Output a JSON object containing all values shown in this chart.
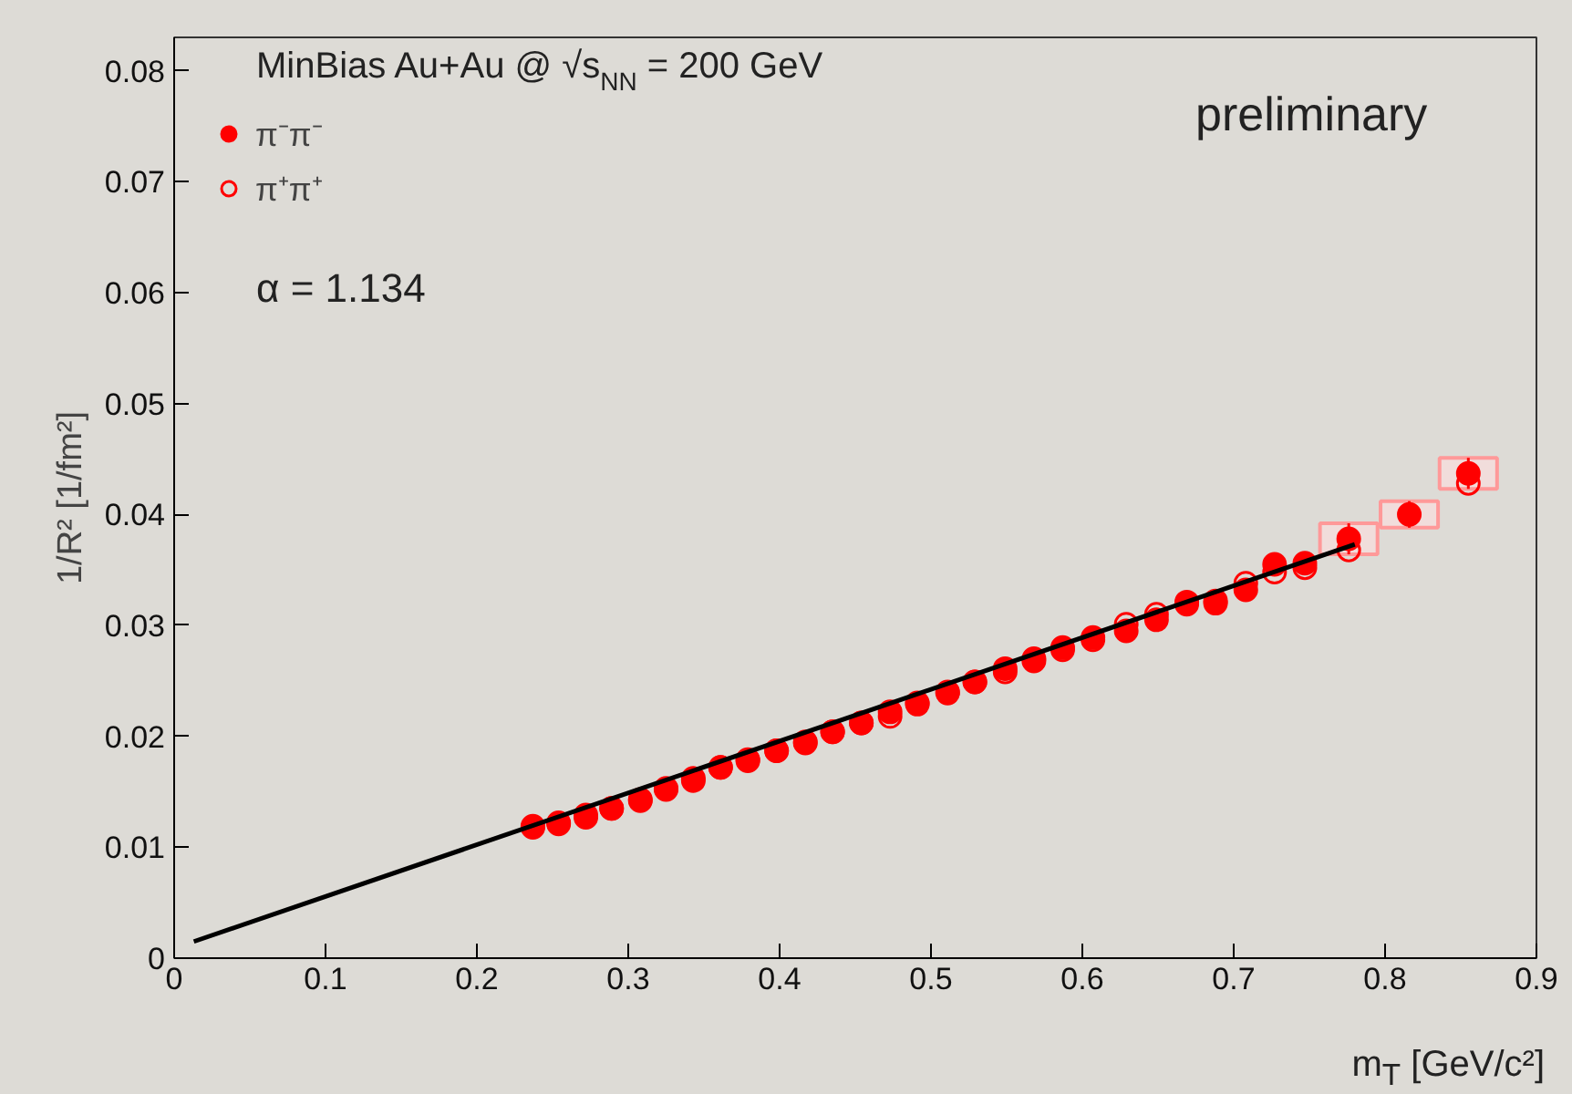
{
  "chart_data": {
    "type": "scatter",
    "xlabel": "m$_{T}$ [GeV/c²]",
    "ylabel": "1/R² [1/fm²]",
    "xlim": [
      0,
      0.9
    ],
    "ylim": [
      0,
      0.083
    ],
    "xticks": [
      0,
      0.1,
      0.2,
      0.3,
      0.4,
      0.5,
      0.6,
      0.7,
      0.8,
      0.9
    ],
    "yticks": [
      0,
      0.01,
      0.02,
      0.03,
      0.04,
      0.05,
      0.06,
      0.07,
      0.08
    ],
    "grid": false,
    "legend": "top left",
    "annotations": [
      "MinBias Au+Au @ √s$_{NN}$ = 200 GeV",
      "α = 1.134",
      "preliminary"
    ],
    "x": [
      0.237,
      0.254,
      0.272,
      0.289,
      0.308,
      0.325,
      0.343,
      0.361,
      0.379,
      0.398,
      0.417,
      0.435,
      0.454,
      0.473,
      0.491,
      0.511,
      0.529,
      0.549,
      0.568,
      0.587,
      0.607,
      0.629,
      0.649,
      0.669,
      0.688,
      0.708,
      0.727,
      0.747,
      0.776,
      0.816,
      0.855
    ],
    "series": [
      {
        "name": "π⁻π⁻",
        "color": "#ff0000",
        "marker": "circle",
        "values": [
          0.0119,
          0.0121,
          0.0129,
          0.0135,
          0.0143,
          0.0153,
          0.016,
          0.0172,
          0.0178,
          0.0187,
          0.0194,
          0.0204,
          0.0212,
          0.0222,
          0.0229,
          0.024,
          0.0249,
          0.0261,
          0.0268,
          0.028,
          0.0289,
          0.0295,
          0.0305,
          0.0319,
          0.032,
          0.0332,
          0.0355,
          0.0356,
          0.0378,
          0.04,
          0.0437
        ],
        "errors": [
          null,
          null,
          null,
          null,
          null,
          null,
          null,
          null,
          null,
          null,
          null,
          null,
          null,
          null,
          null,
          null,
          null,
          null,
          null,
          null,
          null,
          null,
          null,
          null,
          null,
          null,
          null,
          null,
          0.0014,
          0.0012,
          0.0014
        ]
      },
      {
        "name": "π⁺π⁺",
        "color": "#ff0000",
        "marker": "open_circle",
        "values": [
          0.0118,
          0.0122,
          0.0127,
          0.0135,
          0.0142,
          0.0152,
          0.0162,
          0.0172,
          0.0179,
          0.0187,
          0.0195,
          0.0204,
          0.0212,
          0.0218,
          0.023,
          0.0239,
          0.0249,
          0.0258,
          0.027,
          0.0278,
          0.0287,
          0.0301,
          0.031,
          0.0321,
          0.0322,
          0.0338,
          0.0348,
          0.0352,
          0.0368,
          null,
          0.0428
        ]
      },
      {
        "type": "line",
        "color": "#000000",
        "marker": "none",
        "x": [
          0.013,
          0.78
        ],
        "values": [
          0.0015,
          0.0373
        ]
      }
    ]
  }
}
